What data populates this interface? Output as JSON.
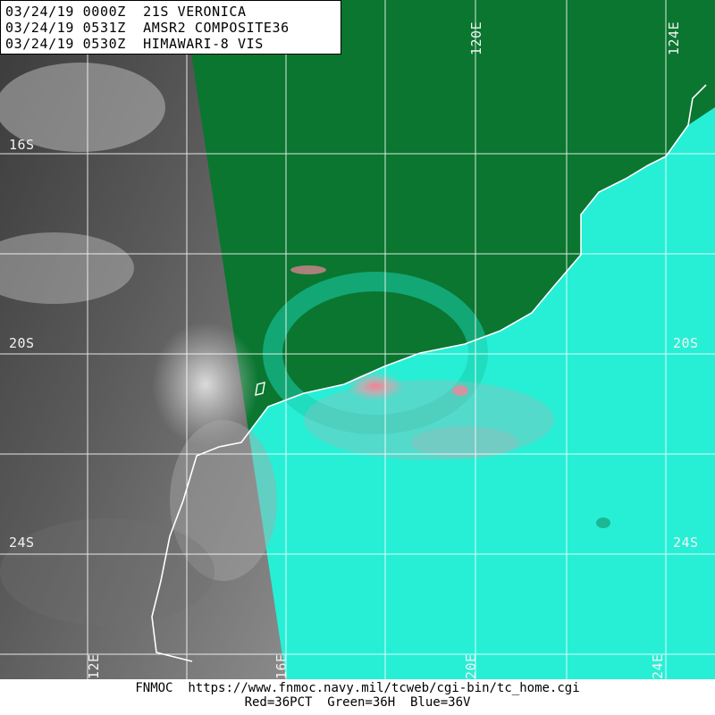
{
  "header": {
    "lines": [
      "03/24/19 0000Z  21S VERONICA",
      "03/24/19 0531Z  AMSR2 COMPOSITE36",
      "03/24/19 0530Z  HIMAWARI-8 VIS"
    ]
  },
  "grid": {
    "lat_labels": [
      "16S",
      "20S",
      "20S",
      "24S",
      "24S"
    ],
    "lon_labels": [
      "120E",
      "124E",
      "12E",
      "16E",
      "20E",
      "24E"
    ]
  },
  "footer": {
    "url_line": "FNMOC  https://www.fnmoc.navy.mil/tcweb/cgi-bin/tc_home.cgi",
    "channel_line": "Red=36PCT  Green=36H  Blue=36V"
  },
  "colors": {
    "ocean": "#27efd6",
    "land": "#0a7630",
    "rain_core": "#f07a8c",
    "grid": "#ffffff",
    "vis_panel": "#5a5a5a"
  }
}
